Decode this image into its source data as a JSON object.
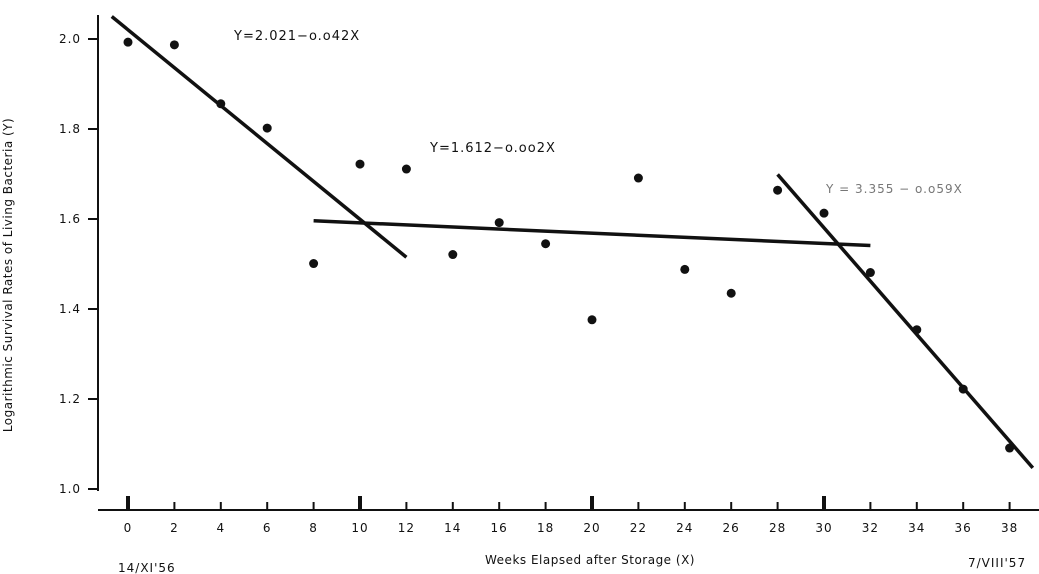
{
  "chart_data": {
    "type": "scatter",
    "xlabel": "Weeks Elapsed after Storage  (X)",
    "ylabel": "Logarithmic Survival Rates of Living Bacteria  (Y)",
    "xlim": [
      -1,
      39
    ],
    "ylim": [
      1.0,
      2.05
    ],
    "x_ticks": [
      0,
      2,
      4,
      6,
      8,
      10,
      12,
      14,
      16,
      18,
      20,
      22,
      24,
      26,
      28,
      30,
      32,
      34,
      36,
      38
    ],
    "y_ticks": [
      1.0,
      1.2,
      1.4,
      1.6,
      1.8,
      2.0
    ],
    "y_tick_labels": [
      "1.0",
      "1.2",
      "1.4",
      "1.6",
      "1.8",
      "2.0"
    ],
    "grid": false,
    "points": [
      {
        "x": 0,
        "y": 1.993
      },
      {
        "x": 2,
        "y": 1.987
      },
      {
        "x": 4,
        "y": 1.856
      },
      {
        "x": 6,
        "y": 1.802
      },
      {
        "x": 8,
        "y": 1.501
      },
      {
        "x": 10,
        "y": 1.722
      },
      {
        "x": 12,
        "y": 1.711
      },
      {
        "x": 14,
        "y": 1.521
      },
      {
        "x": 16,
        "y": 1.592
      },
      {
        "x": 18,
        "y": 1.545
      },
      {
        "x": 20,
        "y": 1.376
      },
      {
        "x": 22,
        "y": 1.691
      },
      {
        "x": 24,
        "y": 1.488
      },
      {
        "x": 26,
        "y": 1.435
      },
      {
        "x": 28,
        "y": 1.664
      },
      {
        "x": 30,
        "y": 1.613
      },
      {
        "x": 32,
        "y": 1.481
      },
      {
        "x": 34,
        "y": 1.354
      },
      {
        "x": 36,
        "y": 1.222
      },
      {
        "x": 38,
        "y": 1.091
      }
    ],
    "regression_lines": [
      {
        "label": "Y=2.021−o.o42X",
        "x_range": [
          -0.7,
          12
        ],
        "y_range": [
          2.05,
          1.515
        ]
      },
      {
        "label": "Y=1.612−o.oo2X",
        "x_range": [
          8,
          32
        ],
        "y_range": [
          1.596,
          1.541
        ]
      },
      {
        "label": "Y = 3.355 − o.o59X",
        "x_range": [
          28,
          39
        ],
        "y_range": [
          1.699,
          1.047
        ]
      }
    ],
    "start_date_label": "14/XI'56",
    "end_date_label": "7/VIII'57"
  }
}
